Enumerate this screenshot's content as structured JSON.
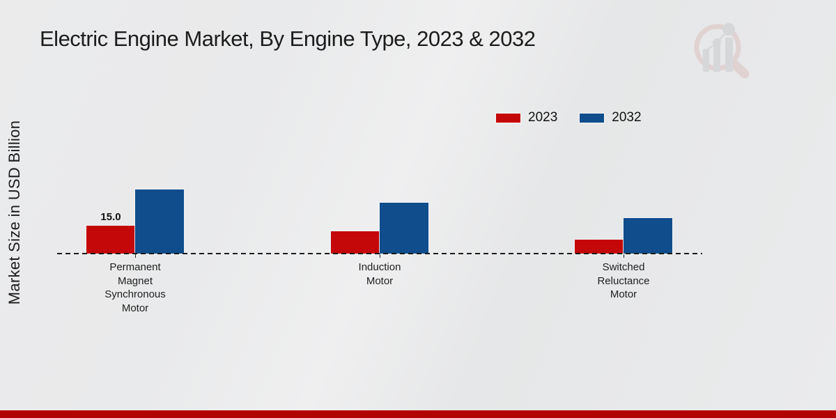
{
  "chart_data": {
    "type": "bar",
    "title": "Electric Engine Market, By Engine Type, 2023 & 2032",
    "ylabel": "Market Size in USD Billion",
    "categories": [
      "Permanent Magnet Synchronous Motor",
      "Induction Motor",
      "Switched Reluctance Motor"
    ],
    "series": [
      {
        "name": "2023",
        "color": "#c40708",
        "values": [
          15.0,
          12.0,
          7.5
        ]
      },
      {
        "name": "2032",
        "color": "#0f4d8c",
        "values": [
          34.5,
          27.5,
          19.0
        ]
      }
    ],
    "data_labels": [
      {
        "series_index": 0,
        "category_index": 0,
        "text": "15.0"
      }
    ],
    "ylim": [
      0,
      40
    ],
    "legend_position": "top-right",
    "grid": false,
    "baseline_style": "dashed"
  },
  "branding": {
    "watermark_icon": "magnifier-bar-chart-logo",
    "footer_bar_color": "#b30404",
    "watermark_ring_color": "#dcbdbd",
    "watermark_bar_color": "#c7c7cb"
  }
}
